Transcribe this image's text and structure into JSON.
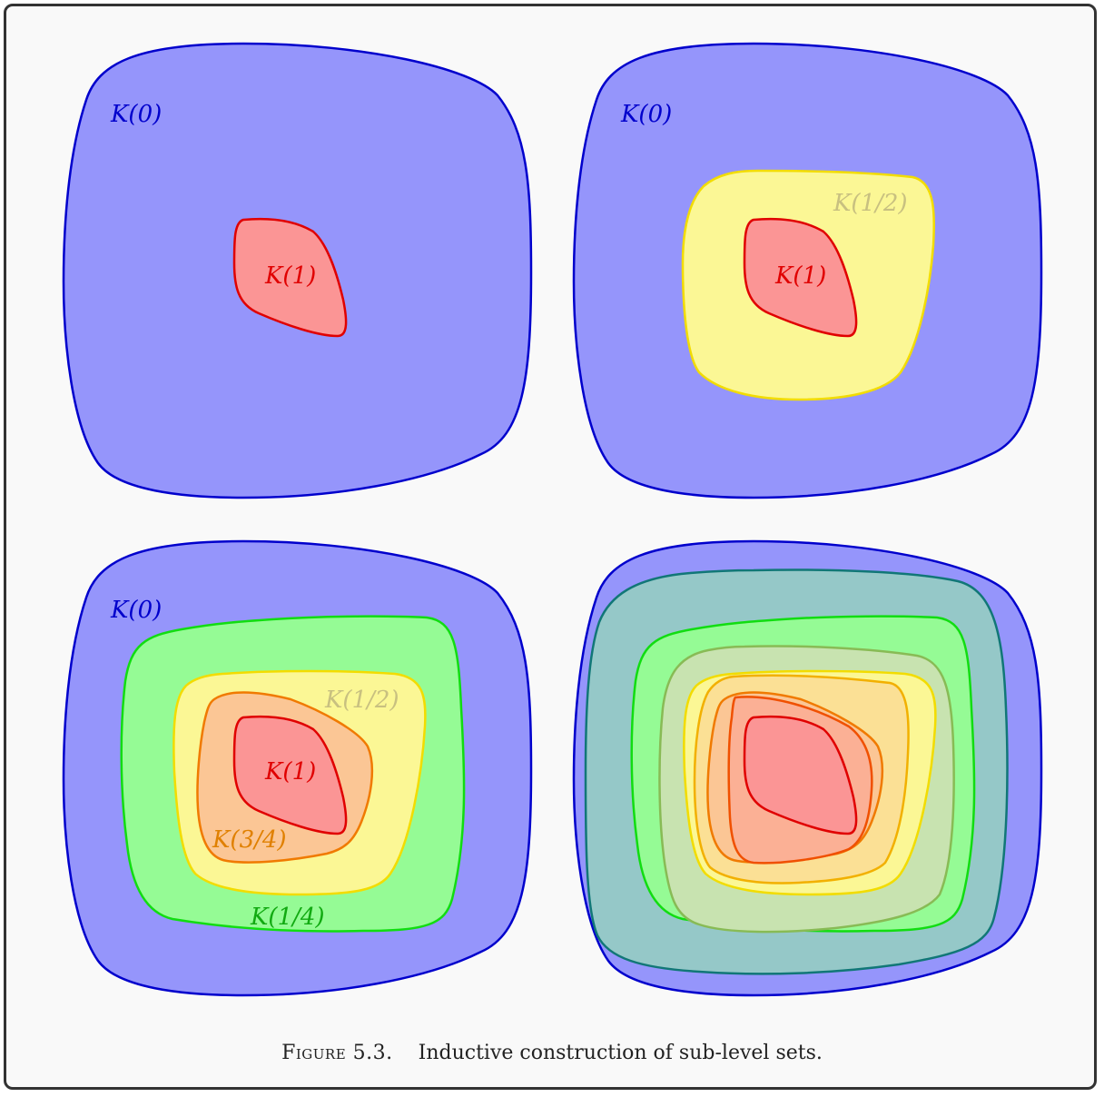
{
  "figure": {
    "caption_label": "Figure 5.3.",
    "caption_text": "Inductive construction of sub-level sets."
  },
  "panels": [
    {
      "id": "top-left",
      "labels": {
        "k0": "K(0)",
        "k1": "K(1)"
      }
    },
    {
      "id": "top-right",
      "labels": {
        "k0": "K(0)",
        "k_half": "K(1/2)",
        "k1": "K(1)"
      }
    },
    {
      "id": "bottom-left",
      "labels": {
        "k0": "K(0)",
        "k_quarter": "K(1/4)",
        "k_half": "K(1/2)",
        "k_three_quarter": "K(3/4)",
        "k1": "K(1)"
      }
    },
    {
      "id": "bottom-right",
      "labels": {}
    }
  ],
  "colors": {
    "k0_fill": "#9595fb",
    "k0_stroke": "#0000cc",
    "k_half_fill": "#fbf795",
    "k_half_stroke": "#f2dc00",
    "k1_fill": "#fb9595",
    "k1_stroke": "#e00000",
    "k_quarter_fill": "#95fb95",
    "k_quarter_stroke": "#11dd11",
    "k_three_quarter_fill": "#fbc695",
    "k_three_quarter_stroke": "#f07a00",
    "k_one_eighth_fill": "#95c8c8",
    "k_one_eighth_stroke": "#117777"
  }
}
